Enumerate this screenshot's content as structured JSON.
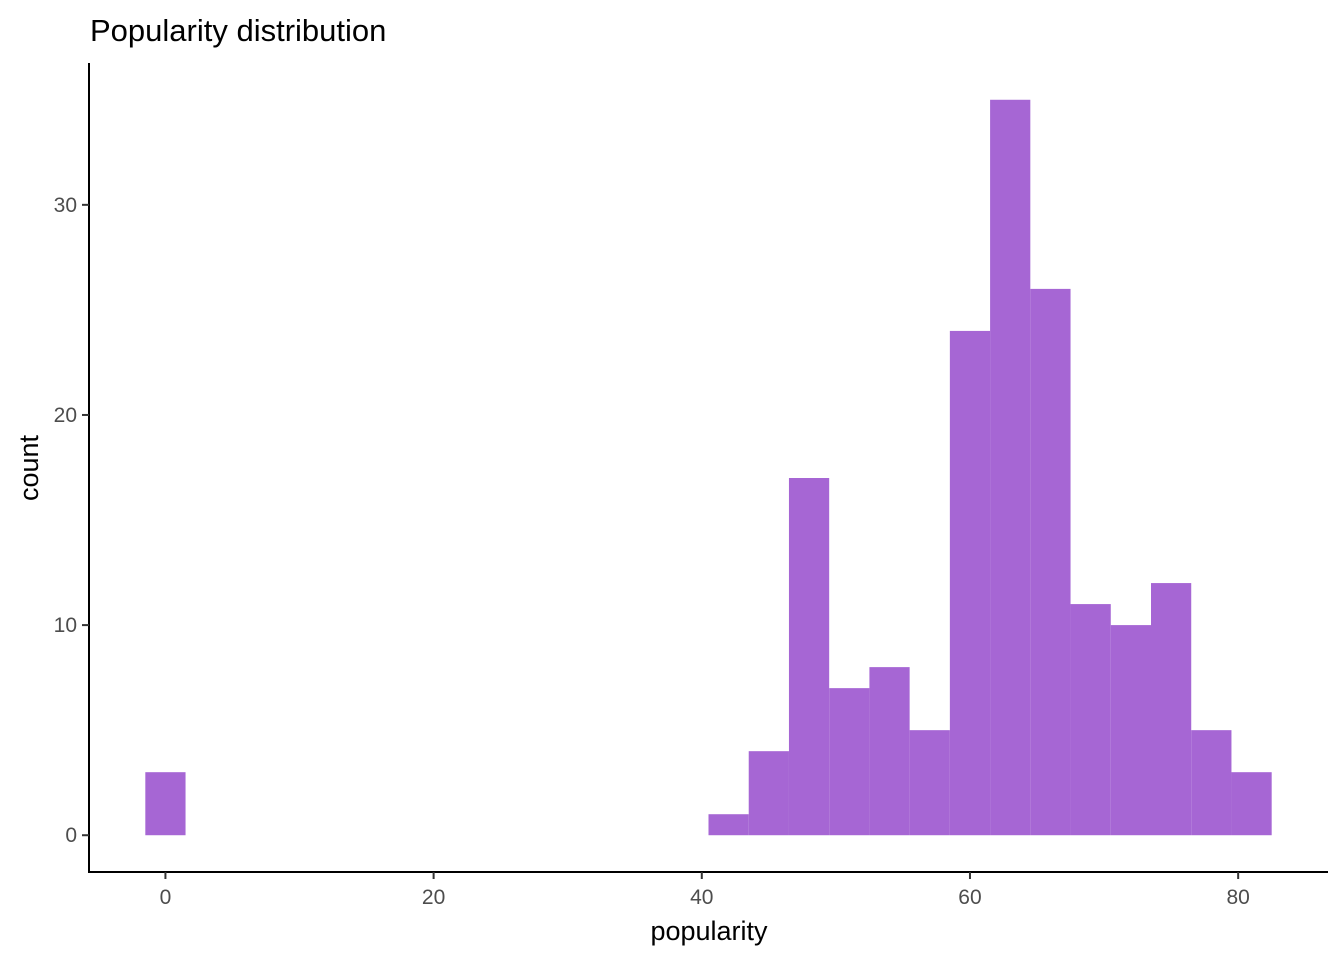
{
  "chart_data": {
    "type": "bar",
    "title": "Popularity distribution",
    "xlabel": "popularity",
    "ylabel": "count",
    "bin_width": 3,
    "bins": [
      {
        "x_start": -1.5,
        "x_end": 1.5,
        "count": 3
      },
      {
        "x_start": 40.5,
        "x_end": 43.5,
        "count": 1
      },
      {
        "x_start": 43.5,
        "x_end": 46.5,
        "count": 4
      },
      {
        "x_start": 46.5,
        "x_end": 49.5,
        "count": 17
      },
      {
        "x_start": 49.5,
        "x_end": 52.5,
        "count": 7
      },
      {
        "x_start": 52.5,
        "x_end": 55.5,
        "count": 8
      },
      {
        "x_start": 55.5,
        "x_end": 58.5,
        "count": 5
      },
      {
        "x_start": 58.5,
        "x_end": 61.5,
        "count": 24
      },
      {
        "x_start": 61.5,
        "x_end": 64.5,
        "count": 35
      },
      {
        "x_start": 64.5,
        "x_end": 67.5,
        "count": 26
      },
      {
        "x_start": 67.5,
        "x_end": 70.5,
        "count": 11
      },
      {
        "x_start": 70.5,
        "x_end": 73.5,
        "count": 10
      },
      {
        "x_start": 73.5,
        "x_end": 76.5,
        "count": 12
      },
      {
        "x_start": 76.5,
        "x_end": 79.5,
        "count": 5
      },
      {
        "x_start": 79.5,
        "x_end": 82.5,
        "count": 3
      }
    ],
    "xlim": [
      -5.7,
      86.7
    ],
    "ylim": [
      -1.75,
      36.75
    ],
    "x_ticks": [
      0,
      20,
      40,
      60,
      80
    ],
    "x_tick_labels": [
      "0",
      "20",
      "40",
      "60",
      "80"
    ],
    "y_ticks": [
      0,
      10,
      20,
      30
    ],
    "y_tick_labels": [
      "0",
      "10",
      "20",
      "30"
    ],
    "grid": false,
    "bar_color": "#a666d4"
  }
}
